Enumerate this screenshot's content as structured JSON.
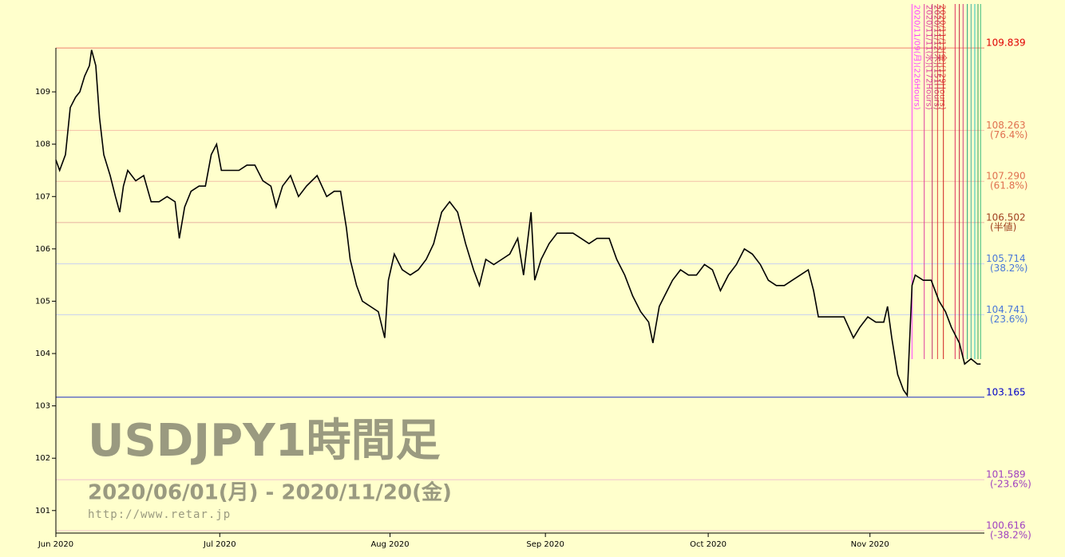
{
  "chart_data": {
    "type": "line",
    "color": "#000000",
    "background": "#ffffcc",
    "xlim": [
      0,
      174.5
    ],
    "xticks": [
      {
        "value": 0,
        "label": "Jun 2020"
      },
      {
        "value": 30.8,
        "label": "Jul 2020"
      },
      {
        "value": 62.8,
        "label": "Aug 2020"
      },
      {
        "value": 92,
        "label": "Sep 2020"
      },
      {
        "value": 122.6,
        "label": "Oct 2020"
      },
      {
        "value": 153,
        "label": "Nov 2020"
      }
    ],
    "ylim": [
      100.57,
      109.84
    ],
    "yticks": [
      101,
      102,
      103,
      104,
      105,
      106,
      107,
      108,
      109
    ],
    "x": [
      0,
      0.7,
      1.8,
      2.7,
      3.7,
      4.5,
      5.4,
      6.3,
      6.7,
      7.5,
      8.2,
      9.0,
      10.2,
      11.2,
      12.0,
      12.7,
      13.5,
      15.0,
      16.5,
      17.9,
      19.4,
      20.9,
      22.4,
      23.2,
      24.2,
      25.4,
      26.9,
      28.1,
      29.2,
      30.2,
      31.1,
      32.9,
      34.4,
      35.9,
      37.4,
      38.9,
      40.4,
      41.4,
      42.6,
      44.1,
      45.6,
      47.1,
      49.1,
      50.9,
      52.3,
      53.5,
      54.6,
      55.3,
      56.5,
      57.6,
      59.1,
      60.6,
      61.8,
      62.5,
      63.6,
      65.1,
      66.6,
      68.1,
      69.6,
      71.0,
      72.5,
      74.0,
      75.5,
      77.0,
      78.5,
      79.6,
      80.8,
      82.3,
      83.8,
      85.3,
      86.8,
      87.9,
      89.3,
      90.0,
      91.2,
      92.7,
      94.2,
      95.7,
      97.2,
      98.7,
      100.2,
      101.7,
      104.0,
      105.4,
      106.9,
      108.4,
      109.9,
      111.4,
      112.2,
      113.4,
      114.4,
      115.9,
      117.4,
      118.9,
      120.4,
      121.9,
      123.4,
      124.9,
      126.4,
      127.9,
      129.4,
      130.9,
      132.4,
      133.9,
      135.4,
      136.9,
      138.4,
      139.9,
      141.4,
      142.4,
      143.3,
      145.1,
      146.6,
      148.1,
      149.9,
      151.1,
      152.6,
      154.1,
      155.6,
      156.3,
      157.1,
      158.2,
      159.3,
      160.0,
      160.9,
      161.5,
      163.0,
      164.5,
      166.0,
      167.2,
      168.3,
      169.8,
      170.8,
      172.0,
      173.2,
      173.8
    ],
    "values": [
      107.7,
      107.5,
      107.8,
      108.7,
      108.9,
      109.0,
      109.3,
      109.5,
      109.8,
      109.5,
      108.5,
      107.8,
      107.4,
      107.0,
      106.7,
      107.2,
      107.5,
      107.3,
      107.4,
      106.9,
      106.9,
      107.0,
      106.9,
      106.2,
      106.8,
      107.1,
      107.2,
      107.2,
      107.8,
      108.0,
      107.5,
      107.5,
      107.5,
      107.6,
      107.6,
      107.3,
      107.2,
      106.8,
      107.2,
      107.4,
      107.0,
      107.2,
      107.4,
      107.0,
      107.1,
      107.1,
      106.4,
      105.8,
      105.3,
      105.0,
      104.9,
      104.8,
      104.3,
      105.4,
      105.9,
      105.6,
      105.5,
      105.6,
      105.8,
      106.1,
      106.7,
      106.9,
      106.7,
      106.1,
      105.6,
      105.3,
      105.8,
      105.7,
      105.8,
      105.9,
      106.2,
      105.5,
      106.7,
      105.4,
      105.8,
      106.1,
      106.3,
      106.3,
      106.3,
      106.2,
      106.1,
      106.2,
      106.2,
      105.8,
      105.5,
      105.1,
      104.8,
      104.6,
      104.2,
      104.9,
      105.1,
      105.4,
      105.6,
      105.5,
      105.5,
      105.7,
      105.6,
      105.2,
      105.5,
      105.7,
      106.0,
      105.9,
      105.7,
      105.4,
      105.3,
      105.3,
      105.4,
      105.5,
      105.6,
      105.2,
      104.7,
      104.7,
      104.7,
      104.7,
      104.3,
      104.5,
      104.7,
      104.6,
      104.6,
      104.9,
      104.3,
      103.6,
      103.3,
      103.2,
      105.3,
      105.5,
      105.4,
      105.4,
      105.0,
      104.8,
      104.5,
      104.2,
      103.8,
      103.9,
      103.8,
      103.8
    ],
    "hlines": {
      "values": [
        109.839,
        108.263,
        107.29,
        106.502,
        105.714,
        104.741,
        103.165,
        101.589,
        100.616
      ],
      "value_labels": [
        "109.839",
        "108.263",
        "107.290",
        "106.502",
        "105.714",
        "104.741",
        "103.165",
        "101.589",
        "100.616"
      ],
      "notes": [
        null,
        "(76.4%)",
        "(61.8%)",
        "(半値)",
        "(38.2%)",
        "(23.6%)",
        null,
        "(-23.6%)",
        "(-38.2%)"
      ],
      "colors": [
        "#e00000",
        "#e07050",
        "#e07050",
        "#a04020",
        "#4a78d8",
        "#4a78d8",
        "#0000c8",
        "#a040c0",
        "#a040c0"
      ],
      "line_colors": [
        "#f08070",
        "#f4c0a8",
        "#f4c0a8",
        "#e8b0a0",
        "#c8d0f0",
        "#c8d0f0",
        "#2030c0",
        "#f0c0d0",
        "#f0c0d0"
      ]
    },
    "vlines": {
      "x": [
        160.9,
        163.2,
        164.7,
        165.7,
        166.8,
        169.0,
        169.8,
        170.5,
        171.3,
        172.0,
        172.7,
        173.3,
        173.8
      ],
      "labels": [
        "2020/11/09(月)(226Hours)",
        "2020/11/11(水)(172Hours)",
        "2020/11/12(木)(151Hours)",
        "2020/11/13(金)(129Hours)",
        null,
        null,
        null,
        null,
        null,
        null,
        null,
        null,
        null
      ],
      "colors": [
        "#ff40ff",
        "#e040a0",
        "#c03070",
        "#e04040",
        "#d02020",
        "#e03060",
        "#c02040",
        "#d04080",
        "#20a080",
        "#40b0a0",
        "#20c0c0",
        "#30a060",
        "#40c080"
      ]
    },
    "watermark": {
      "title": "USDJPY1時間足",
      "period": "2020/06/01(月) - 2020/11/20(金)",
      "url": "http://www.retar.jp"
    }
  }
}
